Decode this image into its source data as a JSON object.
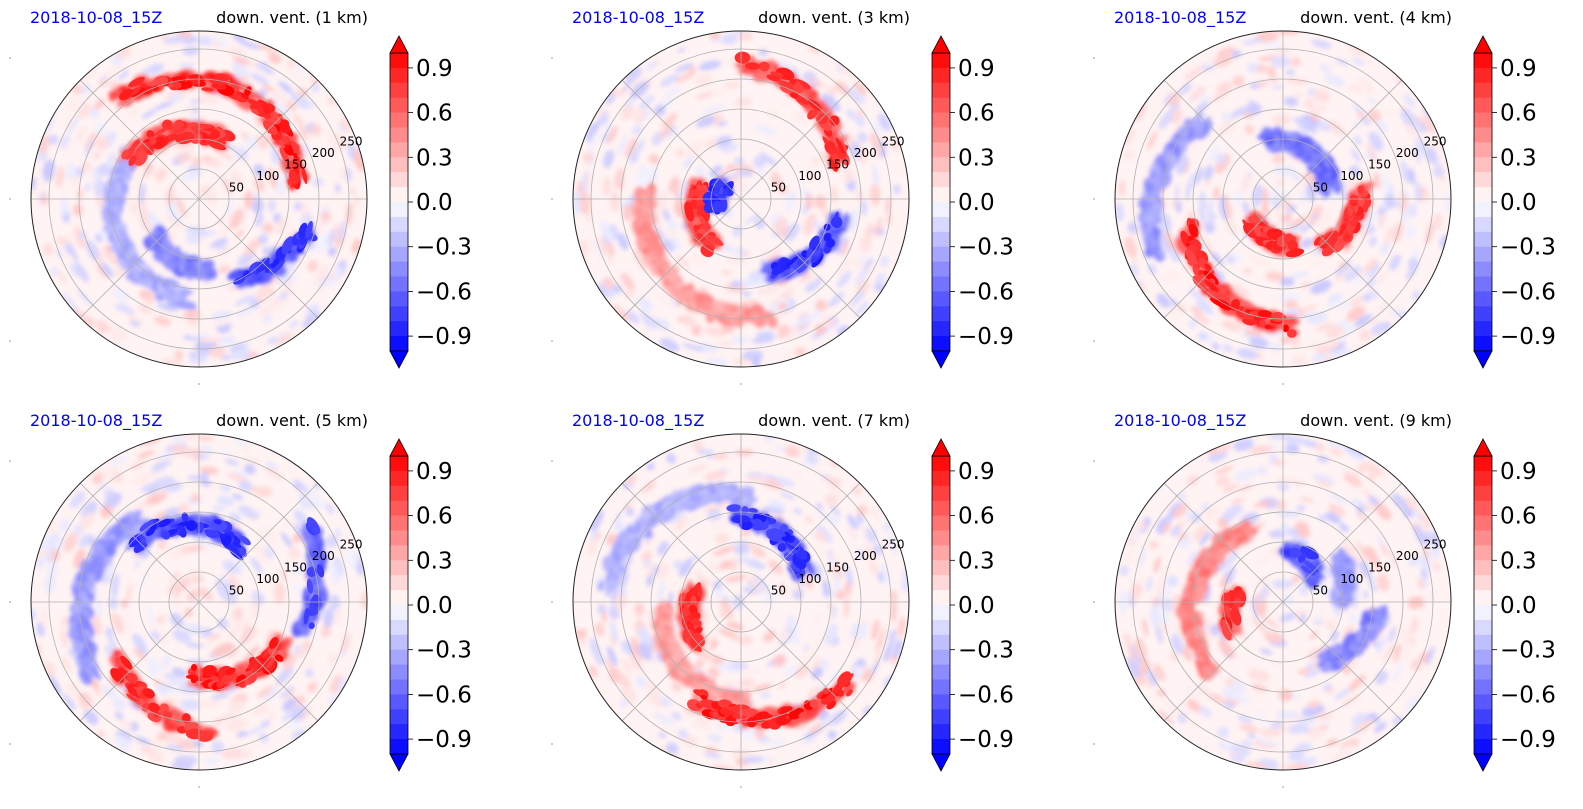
{
  "figure": {
    "panels": [
      {
        "date": "2018-10-08_15Z",
        "title": "down. vent. (1 km)"
      },
      {
        "date": "2018-10-08_15Z",
        "title": "down. vent. (3 km)"
      },
      {
        "date": "2018-10-08_15Z",
        "title": "down. vent. (4 km)"
      },
      {
        "date": "2018-10-08_15Z",
        "title": "down. vent. (5 km)"
      },
      {
        "date": "2018-10-08_15Z",
        "title": "down. vent. (7 km)"
      },
      {
        "date": "2018-10-08_15Z",
        "title": "down. vent. (9 km)"
      }
    ],
    "radial_tick_labels": [
      "50",
      "100",
      "150",
      "200",
      "250"
    ],
    "colorbar_tick_labels": [
      "0.9",
      "0.6",
      "0.3",
      "0.0",
      "−0.3",
      "−0.6",
      "−0.9"
    ],
    "colors": {
      "date_text": "#0000ff",
      "positive": "#ff0000",
      "negative": "#0000ff",
      "neutral": "#ffffff",
      "grid": "#b0b0b0"
    }
  },
  "chart_data": [
    {
      "type": "heatmap",
      "projection": "polar",
      "title": "down. vent. (1 km)",
      "subtitle": "2018-10-08_15Z",
      "radial_ticks": [
        50,
        100,
        150,
        200,
        250
      ],
      "angular_grid_deg": 45,
      "colorbar": {
        "ticks": [
          -0.9,
          -0.6,
          -0.3,
          0.0,
          0.3,
          0.6,
          0.9
        ],
        "range": [
          -1.0,
          1.0
        ],
        "extend": "both",
        "cmap": "bwr"
      },
      "features": [
        {
          "sign": "positive",
          "angle_deg": 70,
          "radius": 190,
          "magnitude": 1.0,
          "arc_deg": 120
        },
        {
          "sign": "positive",
          "angle_deg": 110,
          "radius": 120,
          "magnitude": 0.9,
          "arc_deg": 90
        },
        {
          "sign": "negative",
          "angle_deg": 210,
          "radius": 150,
          "magnitude": 0.4,
          "arc_deg": 110
        },
        {
          "sign": "negative",
          "angle_deg": 320,
          "radius": 170,
          "magnitude": 0.9,
          "arc_deg": 50
        },
        {
          "sign": "negative",
          "angle_deg": 250,
          "radius": 110,
          "magnitude": 0.6,
          "arc_deg": 60
        }
      ]
    },
    {
      "type": "heatmap",
      "projection": "polar",
      "title": "down. vent. (3 km)",
      "subtitle": "2018-10-08_15Z",
      "radial_ticks": [
        50,
        100,
        150,
        200,
        250
      ],
      "angular_grid_deg": 45,
      "colorbar": {
        "ticks": [
          -0.9,
          -0.6,
          -0.3,
          0.0,
          0.3,
          0.6,
          0.9
        ],
        "range": [
          -1.0,
          1.0
        ],
        "extend": "both",
        "cmap": "bwr"
      },
      "features": [
        {
          "sign": "positive",
          "angle_deg": 55,
          "radius": 200,
          "magnitude": 0.9,
          "arc_deg": 70
        },
        {
          "sign": "positive",
          "angle_deg": 200,
          "radius": 80,
          "magnitude": 0.9,
          "arc_deg": 80
        },
        {
          "sign": "positive",
          "angle_deg": 230,
          "radius": 180,
          "magnitude": 0.5,
          "arc_deg": 110
        },
        {
          "sign": "negative",
          "angle_deg": 320,
          "radius": 150,
          "magnitude": 0.9,
          "arc_deg": 60
        },
        {
          "sign": "negative",
          "angle_deg": 170,
          "radius": 40,
          "magnitude": 0.9,
          "arc_deg": 60
        }
      ]
    },
    {
      "type": "heatmap",
      "projection": "polar",
      "title": "down. vent. (4 km)",
      "subtitle": "2018-10-08_15Z",
      "radial_ticks": [
        50,
        100,
        150,
        200,
        250
      ],
      "angular_grid_deg": 45,
      "colorbar": {
        "ticks": [
          -0.9,
          -0.6,
          -0.3,
          0.0,
          0.3,
          0.6,
          0.9
        ],
        "range": [
          -1.0,
          1.0
        ],
        "extend": "both",
        "cmap": "bwr"
      },
      "features": [
        {
          "sign": "positive",
          "angle_deg": 235,
          "radius": 190,
          "magnitude": 1.0,
          "arc_deg": 80
        },
        {
          "sign": "positive",
          "angle_deg": 340,
          "radius": 120,
          "magnitude": 0.9,
          "arc_deg": 60
        },
        {
          "sign": "positive",
          "angle_deg": 250,
          "radius": 70,
          "magnitude": 0.9,
          "arc_deg": 70
        },
        {
          "sign": "negative",
          "angle_deg": 170,
          "radius": 210,
          "magnitude": 0.5,
          "arc_deg": 70
        },
        {
          "sign": "negative",
          "angle_deg": 60,
          "radius": 90,
          "magnitude": 0.7,
          "arc_deg": 90
        }
      ]
    },
    {
      "type": "heatmap",
      "projection": "polar",
      "title": "down. vent. (5 km)",
      "subtitle": "2018-10-08_15Z",
      "radial_ticks": [
        50,
        100,
        150,
        200,
        250
      ],
      "angular_grid_deg": 45,
      "colorbar": {
        "ticks": [
          -0.9,
          -0.6,
          -0.3,
          0.0,
          0.3,
          0.6,
          0.9
        ],
        "range": [
          -1.0,
          1.0
        ],
        "extend": "both",
        "cmap": "bwr"
      },
      "features": [
        {
          "sign": "positive",
          "angle_deg": 300,
          "radius": 140,
          "magnitude": 1.0,
          "arc_deg": 70
        },
        {
          "sign": "positive",
          "angle_deg": 245,
          "radius": 190,
          "magnitude": 0.9,
          "arc_deg": 60
        },
        {
          "sign": "negative",
          "angle_deg": 95,
          "radius": 130,
          "magnitude": 0.9,
          "arc_deg": 90
        },
        {
          "sign": "negative",
          "angle_deg": 170,
          "radius": 190,
          "magnitude": 0.5,
          "arc_deg": 90
        },
        {
          "sign": "negative",
          "angle_deg": 10,
          "radius": 200,
          "magnitude": 0.8,
          "arc_deg": 50
        }
      ]
    },
    {
      "type": "heatmap",
      "projection": "polar",
      "title": "down. vent. (7 km)",
      "subtitle": "2018-10-08_15Z",
      "radial_ticks": [
        50,
        100,
        150,
        200,
        250
      ],
      "angular_grid_deg": 45,
      "colorbar": {
        "ticks": [
          -0.9,
          -0.6,
          -0.3,
          0.0,
          0.3,
          0.6,
          0.9
        ],
        "range": [
          -1.0,
          1.0
        ],
        "extend": "both",
        "cmap": "bwr"
      },
      "features": [
        {
          "sign": "positive",
          "angle_deg": 285,
          "radius": 200,
          "magnitude": 1.0,
          "arc_deg": 80
        },
        {
          "sign": "positive",
          "angle_deg": 195,
          "radius": 90,
          "magnitude": 0.9,
          "arc_deg": 60
        },
        {
          "sign": "positive",
          "angle_deg": 230,
          "radius": 150,
          "magnitude": 0.5,
          "arc_deg": 90
        },
        {
          "sign": "negative",
          "angle_deg": 60,
          "radius": 130,
          "magnitude": 0.9,
          "arc_deg": 70
        },
        {
          "sign": "negative",
          "angle_deg": 130,
          "radius": 200,
          "magnitude": 0.4,
          "arc_deg": 90
        }
      ]
    },
    {
      "type": "heatmap",
      "projection": "polar",
      "title": "down. vent. (9 km)",
      "subtitle": "2018-10-08_15Z",
      "radial_ticks": [
        50,
        100,
        150,
        200,
        250
      ],
      "angular_grid_deg": 45,
      "colorbar": {
        "ticks": [
          -0.9,
          -0.6,
          -0.3,
          0.0,
          0.3,
          0.6,
          0.9
        ],
        "range": [
          -1.0,
          1.0
        ],
        "extend": "both",
        "cmap": "bwr"
      },
      "features": [
        {
          "sign": "positive",
          "angle_deg": 170,
          "radius": 150,
          "magnitude": 0.6,
          "arc_deg": 110
        },
        {
          "sign": "positive",
          "angle_deg": 190,
          "radius": 90,
          "magnitude": 0.9,
          "arc_deg": 40
        },
        {
          "sign": "negative",
          "angle_deg": 60,
          "radius": 80,
          "magnitude": 0.8,
          "arc_deg": 50
        },
        {
          "sign": "negative",
          "angle_deg": 330,
          "radius": 140,
          "magnitude": 0.6,
          "arc_deg": 50
        },
        {
          "sign": "negative",
          "angle_deg": 20,
          "radius": 110,
          "magnitude": 0.5,
          "arc_deg": 40
        }
      ]
    }
  ]
}
